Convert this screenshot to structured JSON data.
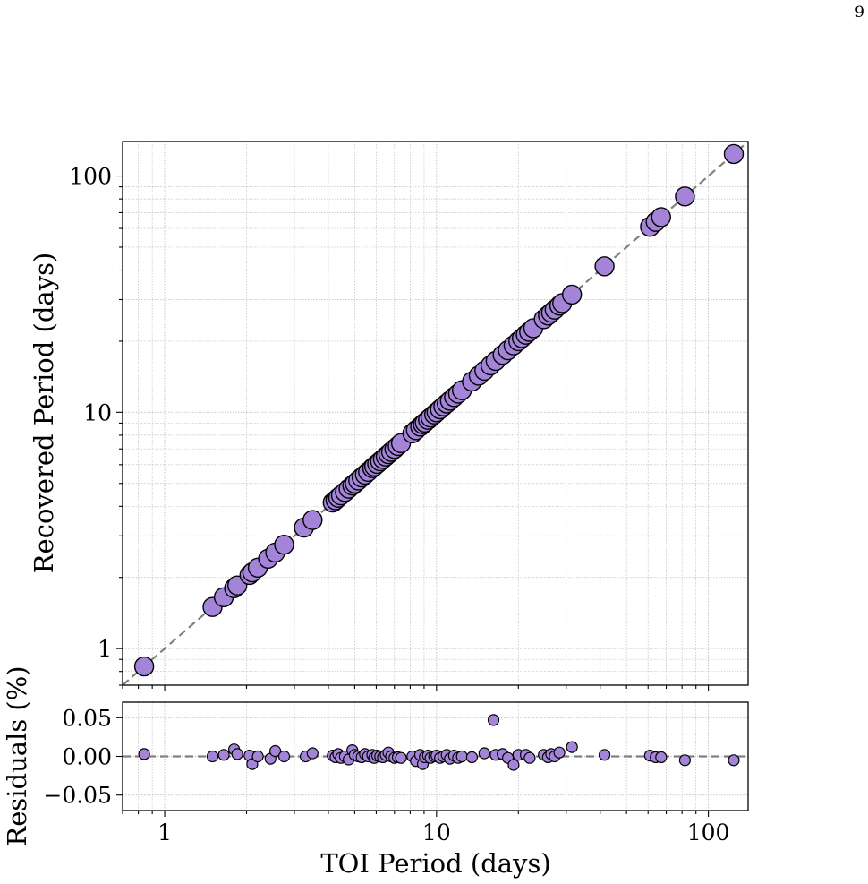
{
  "page_number": "9",
  "colors": {
    "marker_fill": "#a384d8",
    "marker_edge": "#000000",
    "reference_line": "#808080",
    "grid": "#bfbfbf"
  },
  "chart_data": [
    {
      "type": "scatter",
      "panel": "main",
      "xscale": "log",
      "yscale": "log",
      "xlim": [
        0.7,
        140
      ],
      "ylim": [
        0.7,
        140
      ],
      "xlabel": "",
      "ylabel": "Recovered Period (days)",
      "yticks": [
        {
          "value": 1,
          "label": "1"
        },
        {
          "value": 10,
          "label": "10"
        },
        {
          "value": 100,
          "label": "100"
        }
      ],
      "grid": true,
      "reference_line": "y = x (dashed)",
      "x": [
        0.84,
        1.5,
        1.65,
        1.8,
        1.85,
        2.05,
        2.1,
        2.2,
        2.4,
        2.55,
        2.75,
        3.25,
        3.5,
        4.15,
        4.25,
        4.35,
        4.45,
        4.6,
        4.75,
        4.9,
        5.0,
        5.15,
        5.3,
        5.45,
        5.6,
        5.8,
        5.9,
        6.05,
        6.2,
        6.35,
        6.5,
        6.65,
        6.8,
        7.0,
        7.2,
        7.4,
        8.15,
        8.4,
        8.7,
        8.9,
        9.05,
        9.3,
        9.5,
        9.8,
        10.0,
        10.3,
        10.6,
        10.9,
        11.2,
        11.6,
        12.0,
        12.4,
        13.5,
        14.3,
        15.0,
        15.8,
        16.5,
        17.5,
        18.3,
        19.2,
        20.0,
        20.6,
        21.3,
        21.9,
        22.7,
        24.8,
        25.7,
        26.4,
        27.2,
        28.3,
        29.0,
        31.5,
        41.5,
        61.0,
        64.0,
        67.0,
        82.0,
        124.0
      ],
      "y": [
        0.84,
        1.5,
        1.65,
        1.8,
        1.85,
        2.05,
        2.1,
        2.2,
        2.4,
        2.55,
        2.75,
        3.25,
        3.5,
        4.15,
        4.25,
        4.35,
        4.45,
        4.6,
        4.75,
        4.9,
        5.0,
        5.15,
        5.3,
        5.45,
        5.6,
        5.8,
        5.9,
        6.05,
        6.2,
        6.35,
        6.5,
        6.65,
        6.8,
        7.0,
        7.2,
        7.4,
        8.15,
        8.4,
        8.7,
        8.9,
        9.05,
        9.3,
        9.5,
        9.8,
        10.0,
        10.3,
        10.6,
        10.9,
        11.2,
        11.6,
        12.0,
        12.4,
        13.5,
        14.3,
        15.0,
        15.8,
        16.5,
        17.5,
        18.3,
        19.2,
        20.0,
        20.6,
        21.3,
        21.9,
        22.7,
        24.8,
        25.7,
        26.4,
        27.2,
        28.3,
        29.0,
        31.5,
        41.5,
        61.0,
        64.0,
        67.0,
        82.0,
        124.0
      ]
    },
    {
      "type": "scatter",
      "panel": "residuals",
      "xscale": "log",
      "xlim": [
        0.7,
        140
      ],
      "ylim": [
        -0.07,
        0.07
      ],
      "xlabel": "TOI Period (days)",
      "ylabel": "Residuals (%)",
      "xticks": [
        {
          "value": 1,
          "label": "1"
        },
        {
          "value": 10,
          "label": "10"
        },
        {
          "value": 100,
          "label": "100"
        }
      ],
      "yticks": [
        {
          "value": 0.05,
          "label": "0.05"
        },
        {
          "value": 0.0,
          "label": "0.00"
        },
        {
          "value": -0.05,
          "label": "−0.05"
        }
      ],
      "grid": true,
      "reference_line": "y = 0 (dashed)",
      "x": [
        0.84,
        1.5,
        1.65,
        1.8,
        1.85,
        2.05,
        2.1,
        2.2,
        2.45,
        2.55,
        2.75,
        3.3,
        3.5,
        4.15,
        4.25,
        4.35,
        4.45,
        4.6,
        4.75,
        4.9,
        5.0,
        5.15,
        5.3,
        5.45,
        5.6,
        5.8,
        5.9,
        6.05,
        6.2,
        6.35,
        6.5,
        6.65,
        6.8,
        7.0,
        7.2,
        7.4,
        8.15,
        8.4,
        8.7,
        8.9,
        9.05,
        9.3,
        9.5,
        9.8,
        10.0,
        10.3,
        10.6,
        10.9,
        11.2,
        11.6,
        12.0,
        12.4,
        13.5,
        15.0,
        16.2,
        16.5,
        17.5,
        18.3,
        19.2,
        20.0,
        21.3,
        22.0,
        24.8,
        25.7,
        26.4,
        27.2,
        28.3,
        31.5,
        41.5,
        61.0,
        64.0,
        67.0,
        82.0,
        124.0
      ],
      "y": [
        0.003,
        0.0,
        0.002,
        0.009,
        0.003,
        0.001,
        -0.01,
        0.0,
        -0.003,
        0.007,
        0.0,
        0.0,
        0.004,
        0.001,
        -0.001,
        0.003,
        -0.002,
        0.0,
        -0.004,
        0.008,
        0.002,
        0.0,
        -0.001,
        0.003,
        0.0,
        0.002,
        -0.002,
        0.001,
        0.0,
        -0.001,
        0.002,
        0.005,
        0.0,
        -0.002,
        -0.001,
        -0.002,
        0.0,
        -0.006,
        0.002,
        -0.01,
        -0.001,
        0.001,
        -0.002,
        0.0,
        0.001,
        -0.002,
        0.0,
        0.002,
        -0.003,
        0.001,
        -0.002,
        0.0,
        -0.001,
        0.004,
        0.047,
        0.002,
        0.003,
        -0.002,
        -0.011,
        0.002,
        0.002,
        -0.002,
        0.002,
        -0.001,
        0.003,
        0.0,
        0.005,
        0.012,
        0.002,
        0.001,
        -0.001,
        -0.001,
        -0.005,
        -0.005
      ]
    }
  ]
}
